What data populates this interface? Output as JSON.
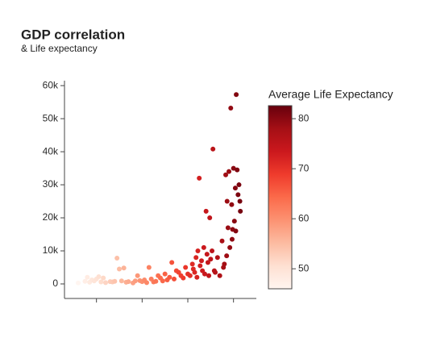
{
  "chart_data": {
    "type": "scatter",
    "title": "GDP correlation",
    "subtitle": "& Life expectancy",
    "colorbar_title": "Average Life Expectancy",
    "colorscale": [
      "#fff5f0",
      "#fee0d2",
      "#fcbba1",
      "#fc9272",
      "#fb6a4a",
      "#ef3b2c",
      "#cb181d",
      "#a50f15",
      "#67000d"
    ],
    "clim": [
      46,
      82.6
    ],
    "cticks": [
      50,
      60,
      70,
      80
    ],
    "xlim": [
      43,
      85
    ],
    "xticks": [
      50,
      60,
      70,
      80
    ],
    "ylim": [
      -4400,
      61500
    ],
    "yticks": [
      0,
      {
        "value": 10000,
        "label": "10k"
      },
      {
        "value": 20000,
        "label": "20k"
      },
      {
        "value": 30000,
        "label": "30k"
      },
      {
        "value": 40000,
        "label": "40k"
      },
      {
        "value": 50000,
        "label": "50k"
      },
      {
        "value": 60000,
        "label": "60k"
      }
    ],
    "x": [
      46,
      47.5,
      48,
      48.5,
      49,
      49.5,
      50,
      50.5,
      51,
      51.5,
      52,
      53,
      53.5,
      54,
      54.5,
      55,
      55.5,
      56,
      56.5,
      57,
      58,
      58.5,
      59,
      59.5,
      60,
      60.5,
      61,
      61.5,
      62,
      62.5,
      63,
      63.5,
      64,
      64.5,
      65,
      65.5,
      66,
      66.5,
      67,
      67.5,
      68,
      68.5,
      69,
      69.5,
      70,
      70.5,
      71,
      71.2,
      71.5,
      71.8,
      72,
      72.2,
      72.5,
      72.7,
      73,
      73.2,
      73.5,
      73.7,
      74,
      74.2,
      74.4,
      74.6,
      74.8,
      75,
      75.3,
      75.5,
      75.8,
      76,
      76.5,
      77,
      77.5,
      78,
      78.3,
      78.6,
      78.8,
      79,
      79.2,
      79.4,
      79.6,
      79.8,
      80,
      80.2,
      80.4,
      80.6,
      80.8,
      81,
      81.2,
      81.4,
      81.5,
      78.5,
      77.8,
      79.7,
      80.5
    ],
    "y": [
      300,
      800,
      2000,
      500,
      1200,
      900,
      1500,
      2200,
      600,
      1800,
      400,
      700,
      600,
      800,
      7800,
      4500,
      900,
      4800,
      500,
      700,
      300,
      900,
      2500,
      1000,
      700,
      1200,
      400,
      5000,
      1500,
      600,
      800,
      2500,
      1800,
      900,
      3000,
      1200,
      2000,
      6500,
      1500,
      4000,
      3500,
      2500,
      1800,
      5000,
      3000,
      2500,
      6000,
      4500,
      3500,
      8000,
      2000,
      10000,
      32000,
      5500,
      7000,
      4000,
      11000,
      3000,
      22000,
      9000,
      6500,
      2500,
      20000,
      7500,
      10000,
      40800,
      4000,
      3500,
      8000,
      2500,
      13000,
      6000,
      33000,
      25000,
      17000,
      34000,
      11000,
      53200,
      24000,
      16500,
      35000,
      19000,
      29000,
      57300,
      34500,
      27000,
      30000,
      25000,
      22000,
      8500,
      5000,
      13500,
      16000
    ]
  }
}
